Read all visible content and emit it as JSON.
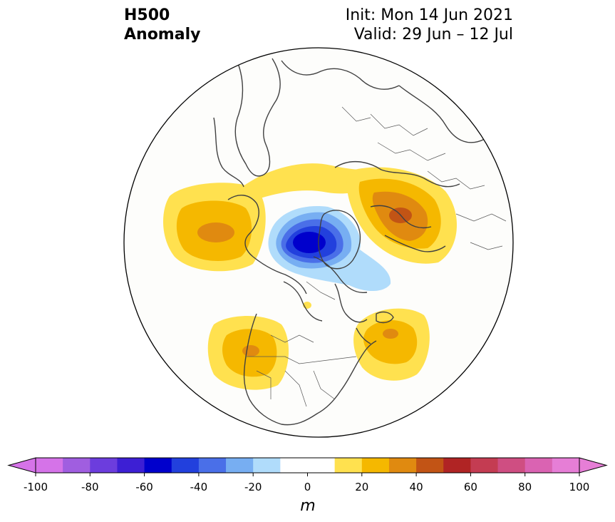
{
  "title": {
    "left_line1": "H500",
    "left_line2": "Anomaly",
    "init": "Init: Mon 14 Jun 2021",
    "valid": "Valid: 29 Jun – 12 Jul"
  },
  "map": {
    "projection": "north-polar-stereographic",
    "variable": "500 hPa geopotential height anomaly",
    "anomaly_features": [
      {
        "region": "north-pacific-bering",
        "sign": "positive",
        "peak_m": 35
      },
      {
        "region": "arctic-canadian-archipelago",
        "sign": "negative",
        "peak_m": -60
      },
      {
        "region": "greenland-baffin-extension",
        "sign": "negative",
        "peak_m": -20
      },
      {
        "region": "western-russia-scandinavia",
        "sign": "positive",
        "peak_m": 50
      },
      {
        "region": "siberia-arctic-ridge",
        "sign": "positive",
        "peak_m": 15
      },
      {
        "region": "western-north-america",
        "sign": "positive",
        "peak_m": 40
      },
      {
        "region": "northwest-atlantic",
        "sign": "positive",
        "peak_m": 40
      }
    ]
  },
  "colorbar": {
    "unit": "m",
    "ticks": [
      "-100",
      "-80",
      "-60",
      "-40",
      "-20",
      "0",
      "20",
      "40",
      "60",
      "80",
      "100"
    ],
    "colors": [
      "#d573e8",
      "#a05ee0",
      "#6c3ddd",
      "#3d1fd4",
      "#0000cc",
      "#2240dd",
      "#4a6fe8",
      "#77aef2",
      "#b0dcfb",
      "#ffffff",
      "#ffffff",
      "#ffe14f",
      "#f5b800",
      "#e08a10",
      "#c25415",
      "#b02424",
      "#c43c52",
      "#cf4e82",
      "#da63b2",
      "#e67ed6"
    ],
    "extend_min_color": "#d573e8",
    "extend_max_color": "#e67ed6"
  }
}
